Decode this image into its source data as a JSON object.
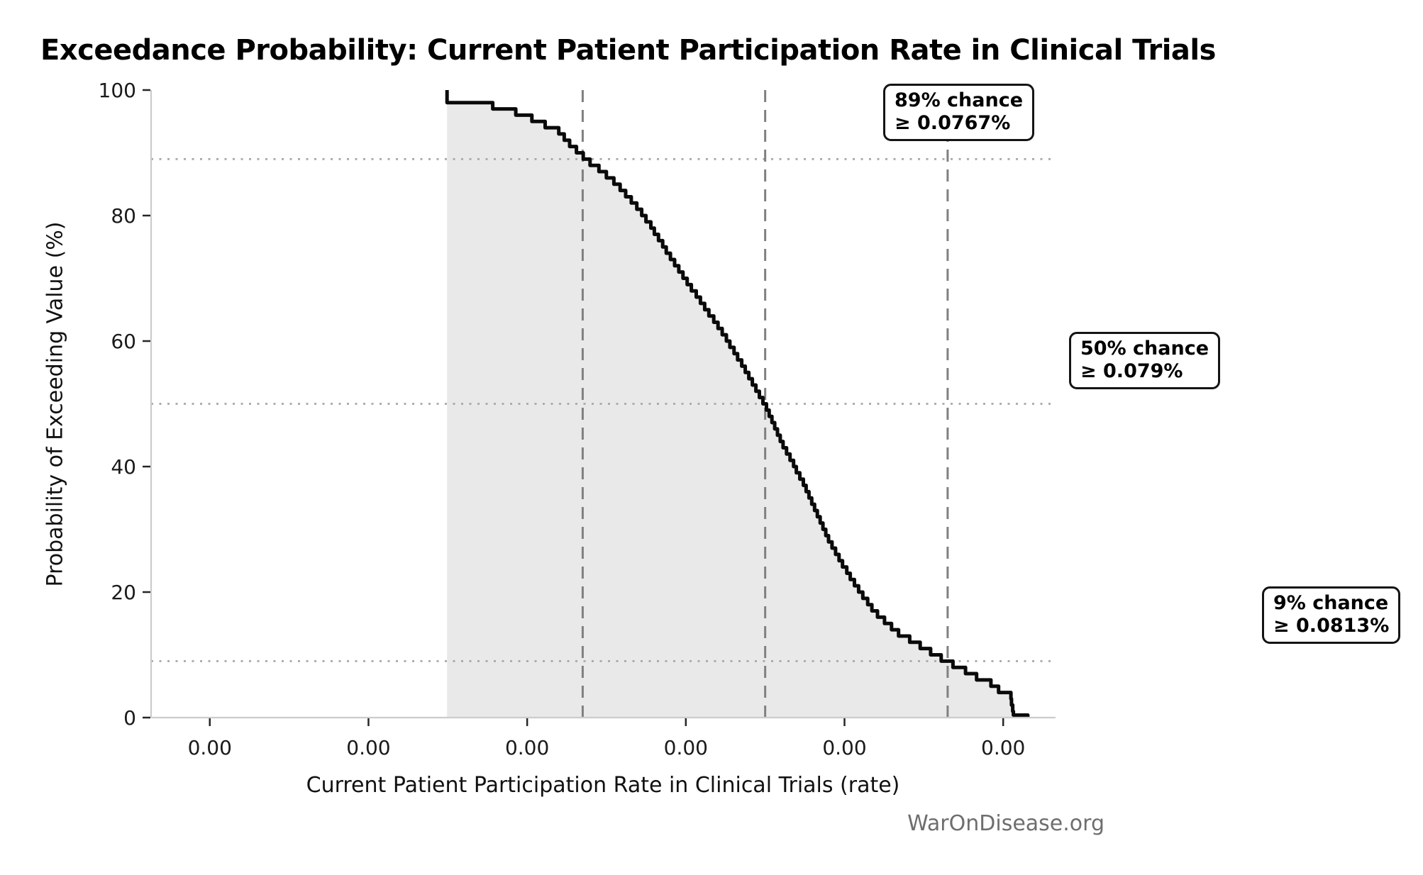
{
  "title": "Exceedance Probability: Current Patient Participation Rate in Clinical Trials",
  "watermark": "WarOnDisease.org",
  "chart_data": {
    "type": "area",
    "subtype": "exceedance-probability-curve",
    "title": "Exceedance Probability: Current Patient Participation Rate in Clinical Trials",
    "xlabel": "Current Patient Participation Rate in Clinical Trials (rate)",
    "ylabel": "Probability of Exceeding Value (%)",
    "ylim": [
      0,
      100
    ],
    "y_ticks": [
      0,
      20,
      40,
      60,
      80,
      100
    ],
    "y_tick_labels": [
      "0",
      "20",
      "40",
      "60",
      "80",
      "100"
    ],
    "x_tick_labels": [
      "0.00",
      "0.00",
      "0.00",
      "0.00",
      "0.00",
      "0.00"
    ],
    "x_tick_values_rate_pct_est": [
      0.072,
      0.074,
      0.076,
      0.078,
      0.08,
      0.082
    ],
    "xlim_rate_pct_est": [
      0.07126,
      0.08266
    ],
    "grid": "off",
    "legend": "none",
    "colors": {
      "curve": "#0a0a0a",
      "area_fill": "#e9e9e9",
      "threshold_dashed": "#808080",
      "reference_dotted": "#a8a8a8",
      "spine": "#cccccc",
      "tick_mark": "#262626",
      "watermark": "#6e6e6e"
    },
    "markers": [
      {
        "probability_pct": 89,
        "rate_pct": 0.0767,
        "label_line1": "89% chance",
        "label_line2": "≥ 0.0767%"
      },
      {
        "probability_pct": 50,
        "rate_pct": 0.079,
        "label_line1": "50% chance",
        "label_line2": "≥ 0.079%"
      },
      {
        "probability_pct": 9,
        "rate_pct": 0.0813,
        "label_line1": "9% chance",
        "label_line2": "≥ 0.0813%"
      }
    ],
    "curve_points_rate_pct_vs_probability": [
      [
        0.07499,
        100.0
      ],
      [
        0.07499,
        98.2
      ],
      [
        0.07532,
        98.0
      ],
      [
        0.07561,
        97.4
      ],
      [
        0.07591,
        96.3
      ],
      [
        0.07621,
        94.6
      ],
      [
        0.07639,
        93.5
      ],
      [
        0.07657,
        91.0
      ],
      [
        0.07675,
        88.9
      ],
      [
        0.07693,
        87.2
      ],
      [
        0.07711,
        85.3
      ],
      [
        0.0774,
        81.2
      ],
      [
        0.07755,
        78.5
      ],
      [
        0.07785,
        72.5
      ],
      [
        0.07814,
        67.2
      ],
      [
        0.07845,
        61.6
      ],
      [
        0.07874,
        55.6
      ],
      [
        0.07899,
        50.0
      ],
      [
        0.07919,
        44.3
      ],
      [
        0.07949,
        37.2
      ],
      [
        0.07979,
        28.5
      ],
      [
        0.08009,
        22.0
      ],
      [
        0.08038,
        16.8
      ],
      [
        0.08069,
        13.4
      ],
      [
        0.08098,
        11.3
      ],
      [
        0.08128,
        9.0
      ],
      [
        0.08149,
        7.7
      ],
      [
        0.0817,
        6.2
      ],
      [
        0.08188,
        5.3
      ],
      [
        0.08196,
        4.1
      ],
      [
        0.08209,
        3.9
      ],
      [
        0.08212,
        1.0
      ],
      [
        0.0822,
        0.6
      ],
      [
        0.08231,
        0.4
      ]
    ]
  }
}
